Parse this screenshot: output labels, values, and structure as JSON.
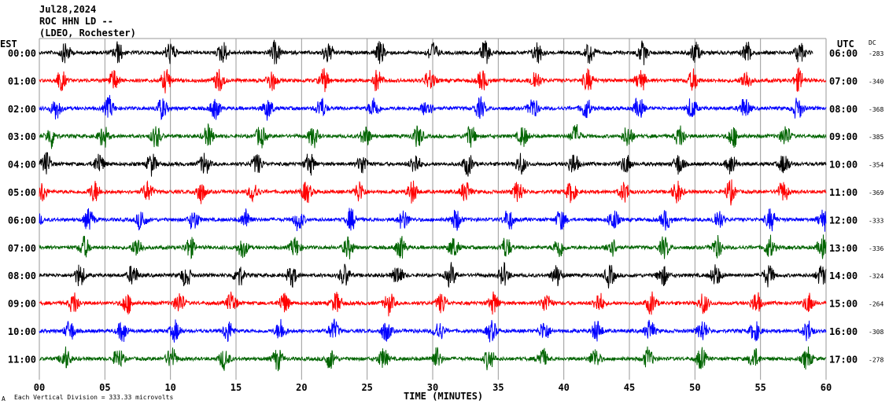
{
  "header": {
    "date": "Jul28,2024",
    "station": "ROC HHN LD --",
    "network": "(LDEO, Rochester)"
  },
  "footer": {
    "scale_note": "Each Vertical Division = 333.33 microvolts",
    "corner_mark": "A"
  },
  "chart_data": {
    "type": "line",
    "title": "",
    "xlabel": "TIME (MINUTES)",
    "left_axis_label": "EST",
    "right_axis_label": "UTC",
    "dc_label": "DC",
    "xlim": [
      0,
      60
    ],
    "x_ticks": [
      "00",
      "05",
      "10",
      "15",
      "20",
      "25",
      "30",
      "35",
      "40",
      "45",
      "50",
      "55",
      "60"
    ],
    "grid_vertical": true,
    "trace_colors": [
      "#000000",
      "#ff0000",
      "#0000ff",
      "#006400"
    ],
    "rows": [
      {
        "est": "00:00",
        "utc": "06:00",
        "dc": "-283",
        "color": "#000000",
        "end_minute": 59.0
      },
      {
        "est": "01:00",
        "utc": "07:00",
        "dc": "-340",
        "color": "#ff0000",
        "end_minute": 60
      },
      {
        "est": "02:00",
        "utc": "08:00",
        "dc": "-368",
        "color": "#0000ff",
        "end_minute": 60
      },
      {
        "est": "03:00",
        "utc": "09:00",
        "dc": "-385",
        "color": "#006400",
        "end_minute": 60
      },
      {
        "est": "04:00",
        "utc": "10:00",
        "dc": "-354",
        "color": "#000000",
        "end_minute": 60
      },
      {
        "est": "05:00",
        "utc": "11:00",
        "dc": "-369",
        "color": "#ff0000",
        "end_minute": 60
      },
      {
        "est": "06:00",
        "utc": "12:00",
        "dc": "-333",
        "color": "#0000ff",
        "end_minute": 60
      },
      {
        "est": "07:00",
        "utc": "13:00",
        "dc": "-336",
        "color": "#006400",
        "end_minute": 60
      },
      {
        "est": "08:00",
        "utc": "14:00",
        "dc": "-324",
        "color": "#000000",
        "end_minute": 60
      },
      {
        "est": "09:00",
        "utc": "15:00",
        "dc": "-264",
        "color": "#ff0000",
        "end_minute": 60
      },
      {
        "est": "10:00",
        "utc": "16:00",
        "dc": "-308",
        "color": "#0000ff",
        "end_minute": 60
      },
      {
        "est": "11:00",
        "utc": "17:00",
        "dc": "-278",
        "color": "#006400",
        "end_minute": 60
      }
    ]
  }
}
